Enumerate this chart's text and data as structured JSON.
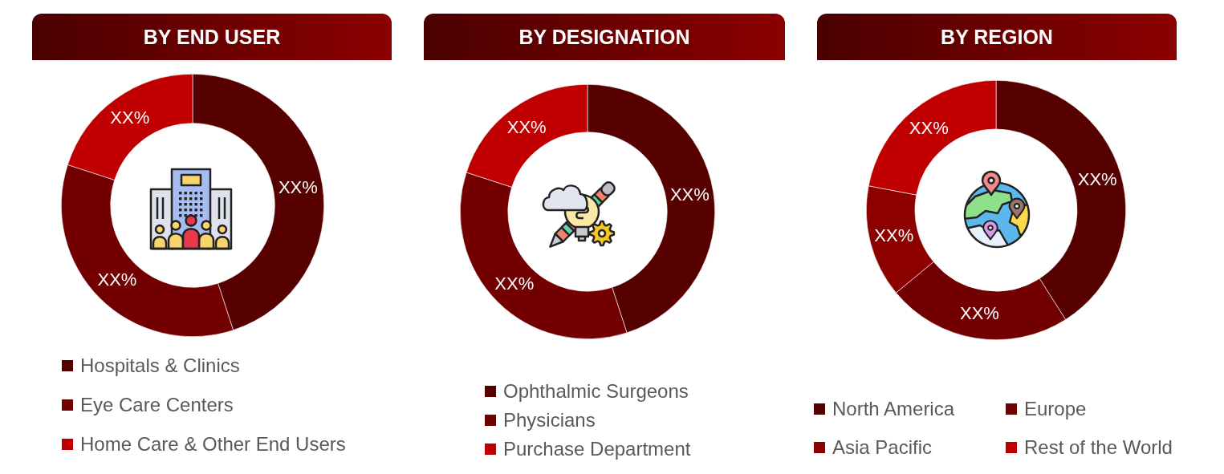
{
  "chart_data": [
    {
      "type": "donut",
      "title": "BY END USER",
      "categories": [
        "Hospitals & Clinics",
        "Eye Care Centers",
        "Home Care & Other End Users"
      ],
      "values": [
        45,
        35,
        20
      ],
      "colors": [
        "#560000",
        "#730000",
        "#c00000"
      ],
      "value_labels": [
        "XX%",
        "XX%",
        "XX%"
      ],
      "legend": "bottom"
    },
    {
      "type": "donut",
      "title": "BY DESIGNATION",
      "categories": [
        "Ophthalmic Surgeons",
        "Physicians",
        "Purchase Department"
      ],
      "values": [
        45,
        35,
        20
      ],
      "colors": [
        "#560000",
        "#730000",
        "#c00000"
      ],
      "value_labels": [
        "XX%",
        "XX%",
        "XX%"
      ],
      "legend": "bottom"
    },
    {
      "type": "donut",
      "title": "BY REGION",
      "categories": [
        "North America",
        "Europe",
        "Asia Pacific",
        "Rest of the World"
      ],
      "values": [
        41,
        23,
        14,
        22
      ],
      "colors": [
        "#560000",
        "#730000",
        "#8c0000",
        "#c00000"
      ],
      "value_labels": [
        "XX%",
        "XX%",
        "XX%",
        "XX%"
      ],
      "legend": "bottom"
    }
  ]
}
